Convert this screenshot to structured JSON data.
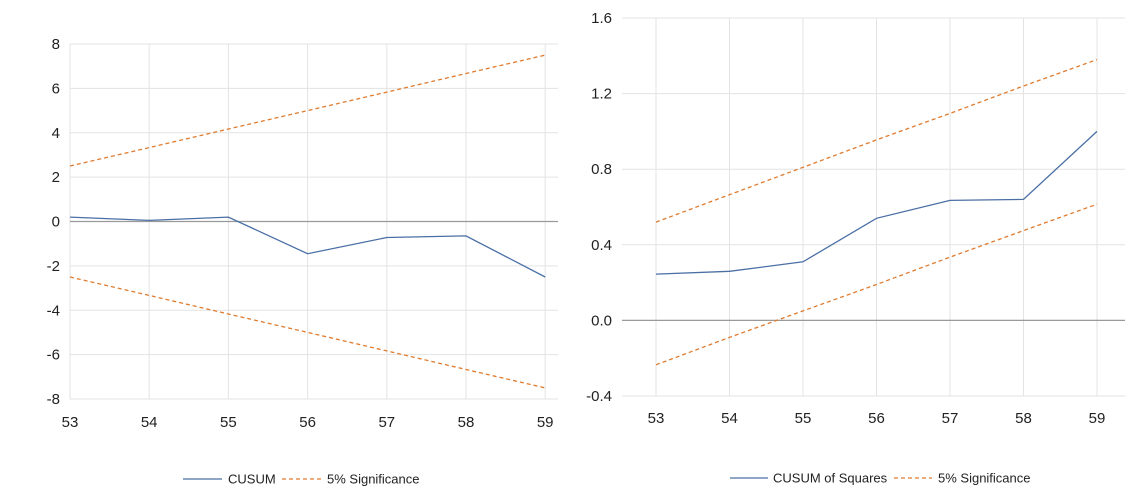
{
  "chart_data": [
    {
      "type": "line",
      "title": "",
      "xlabel": "",
      "ylabel": "",
      "x": [
        "53",
        "54",
        "55",
        "56",
        "57",
        "58",
        "59"
      ],
      "ylim": [
        -8,
        8
      ],
      "yticks": [
        8,
        6,
        4,
        2,
        0,
        -2,
        -4,
        -6,
        -8
      ],
      "y_tick_labels": [
        "8",
        "6",
        "4",
        "2",
        "0",
        "-2",
        "-4",
        "-6",
        "-8"
      ],
      "grid": true,
      "legend_position": "bottom",
      "series": [
        {
          "name": "CUSUM",
          "color": "#4a6fa5",
          "style": "solid",
          "values": [
            0.2,
            0.05,
            0.2,
            -1.45,
            -0.72,
            -0.65,
            -2.5
          ]
        },
        {
          "name": "5% Significance",
          "color": "#e07b2e",
          "style": "dashed",
          "values": [
            2.5,
            3.33,
            4.17,
            5.0,
            5.83,
            6.67,
            7.5
          ]
        },
        {
          "name": "",
          "color": "#e07b2e",
          "style": "dashed",
          "in_legend": false,
          "values": [
            -2.5,
            -3.33,
            -4.17,
            -5.0,
            -5.83,
            -6.67,
            -7.5
          ]
        }
      ],
      "legend": [
        "CUSUM",
        "5% Significance"
      ]
    },
    {
      "type": "line",
      "title": "",
      "xlabel": "",
      "ylabel": "",
      "x": [
        "53",
        "54",
        "55",
        "56",
        "57",
        "58",
        "59"
      ],
      "ylim": [
        -0.4,
        1.6
      ],
      "yticks": [
        1.6,
        1.2,
        0.8,
        0.4,
        0.0,
        -0.4
      ],
      "y_tick_labels": [
        "1.6",
        "1.2",
        "0.8",
        "0.4",
        "0.0",
        "-0.4"
      ],
      "grid": true,
      "legend_position": "bottom",
      "series": [
        {
          "name": "CUSUM of Squares",
          "color": "#4a6fa5",
          "style": "solid",
          "values": [
            0.245,
            0.26,
            0.31,
            0.54,
            0.635,
            0.64,
            1.0
          ]
        },
        {
          "name": "5% Significance",
          "color": "#e07b2e",
          "style": "dashed",
          "values": [
            0.52,
            0.665,
            0.81,
            0.955,
            1.095,
            1.24,
            1.38
          ]
        },
        {
          "name": "",
          "color": "#e07b2e",
          "style": "dashed",
          "in_legend": false,
          "values": [
            -0.235,
            -0.09,
            0.05,
            0.19,
            0.335,
            0.475,
            0.615
          ]
        }
      ],
      "legend": [
        "CUSUM of Squares",
        "5% Significance"
      ]
    }
  ]
}
